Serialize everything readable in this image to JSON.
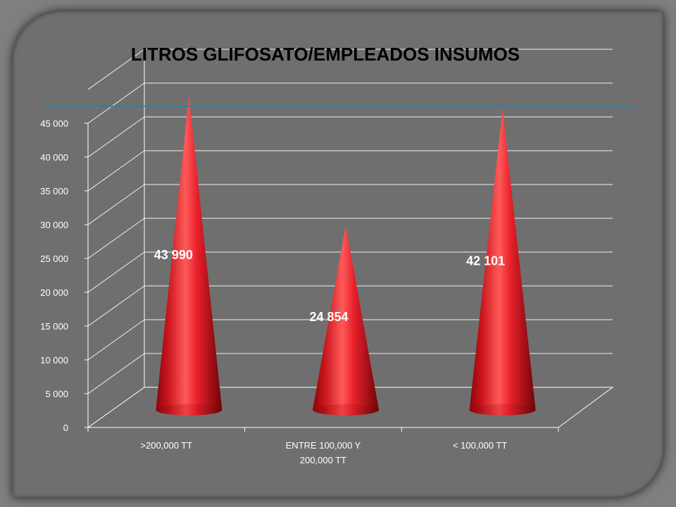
{
  "chart_data": {
    "type": "bar",
    "shape": "cone-3d",
    "title": "LITROS GLIFOSATO/EMPLEADOS INSUMOS",
    "categories": [
      [
        ">200,000 TT"
      ],
      [
        "ENTRE 100,000 Y",
        "200,000 TT"
      ],
      [
        "< 100,000 TT"
      ]
    ],
    "values": [
      43990,
      24854,
      42101
    ],
    "data_labels": [
      "43 990",
      "24 854",
      "42 101"
    ],
    "ylim": [
      0,
      45000
    ],
    "yticks": [
      0,
      5000,
      10000,
      15000,
      20000,
      25000,
      30000,
      35000,
      40000,
      45000
    ],
    "ytick_labels": [
      "0",
      "5 000",
      "10 000",
      "15 000",
      "20 000",
      "25 000",
      "30 000",
      "35 000",
      "40 000",
      "45 000"
    ],
    "grid": true,
    "legend": "none",
    "colors": {
      "bar": "#e41c24",
      "bar_dark": "#7a0508",
      "bar_light": "#ff7a7a",
      "grid": "#ffffff",
      "reference_line": "#2f7f9f",
      "background": "#6f6f6f"
    }
  }
}
